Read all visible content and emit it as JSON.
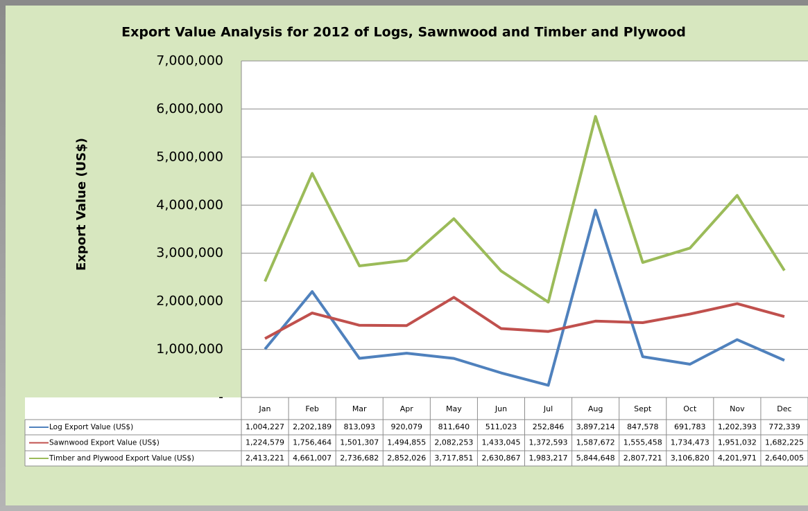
{
  "chart_data": {
    "type": "line",
    "title": "Export Value Analysis for 2012 of Logs, Sawnwood and Timber and Plywood",
    "y_label": "Export Value (US$)",
    "categories": [
      "Jan",
      "Feb",
      "Mar",
      "Apr",
      "May",
      "Jun",
      "Jul",
      "Aug",
      "Sept",
      "Oct",
      "Nov",
      "Dec"
    ],
    "ylim": [
      0,
      7000000
    ],
    "yticks": [
      {
        "value": 0,
        "label": "-"
      },
      {
        "value": 1000000,
        "label": "1,000,000"
      },
      {
        "value": 2000000,
        "label": "2,000,000"
      },
      {
        "value": 3000000,
        "label": "3,000,000"
      },
      {
        "value": 4000000,
        "label": "4,000,000"
      },
      {
        "value": 5000000,
        "label": "5,000,000"
      },
      {
        "value": 6000000,
        "label": "6,000,000"
      },
      {
        "value": 7000000,
        "label": "7,000,000"
      }
    ],
    "grid": true,
    "series": [
      {
        "name": "Log Export Value (US$)",
        "color": "#4f81bd",
        "values": [
          1004227,
          2202189,
          813093,
          920079,
          811640,
          511023,
          252846,
          3897214,
          847578,
          691783,
          1202393,
          772339
        ],
        "value_labels": [
          "1,004,227",
          "2,202,189",
          "813,093",
          "920,079",
          "811,640",
          "511,023",
          "252,846",
          "3,897,214",
          "847,578",
          "691,783",
          "1,202,393",
          "772,339"
        ]
      },
      {
        "name": "Sawnwood Export Value (US$)",
        "color": "#c0504d",
        "values": [
          1224579,
          1756464,
          1501307,
          1494855,
          2082253,
          1433045,
          1372593,
          1587672,
          1555458,
          1734473,
          1951032,
          1682225
        ],
        "value_labels": [
          "1,224,579",
          "1,756,464",
          "1,501,307",
          "1,494,855",
          "2,082,253",
          "1,433,045",
          "1,372,593",
          "1,587,672",
          "1,555,458",
          "1,734,473",
          "1,951,032",
          "1,682,225"
        ]
      },
      {
        "name": "Timber and Plywood Export Value (US$)",
        "color": "#9bbb59",
        "values": [
          2413221,
          4661007,
          2736682,
          2852026,
          3717851,
          2630867,
          1983217,
          5844648,
          2807721,
          3106820,
          4201971,
          2640005
        ],
        "value_labels": [
          "2,413,221",
          "4,661,007",
          "2,736,682",
          "2,852,026",
          "3,717,851",
          "2,630,867",
          "1,983,217",
          "5,844,648",
          "2,807,721",
          "3,106,820",
          "4,201,971",
          "2,640,005"
        ]
      }
    ]
  }
}
